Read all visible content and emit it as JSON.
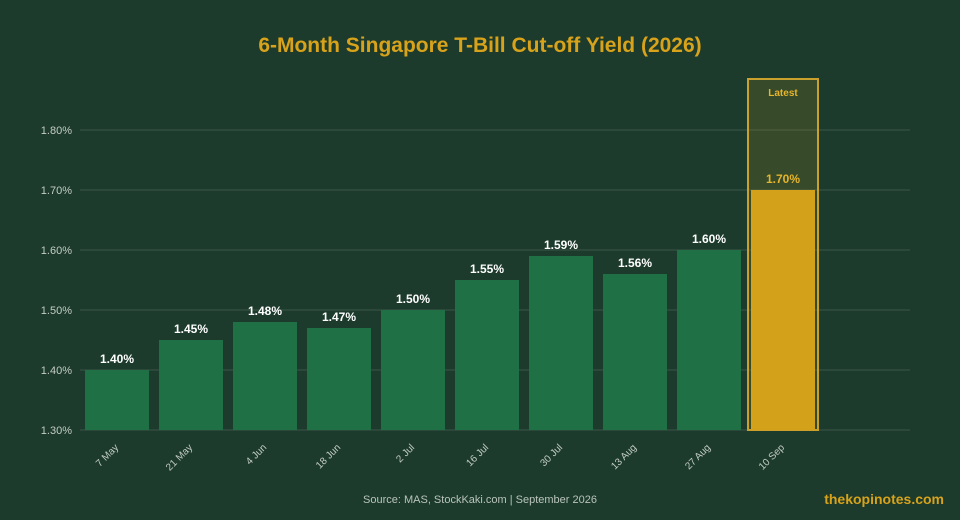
{
  "chart_data": {
    "type": "bar",
    "title": "6-Month Singapore T-Bill Cut-off Yield (2026)",
    "categories": [
      "7 May",
      "21 May",
      "4 Jun",
      "18 Jun",
      "2 Jul",
      "16 Jul",
      "30 Jul",
      "13 Aug",
      "27 Aug",
      "10 Sep"
    ],
    "values": [
      1.4,
      1.45,
      1.48,
      1.47,
      1.5,
      1.55,
      1.59,
      1.56,
      1.6,
      1.7
    ],
    "value_labels": [
      "1.40%",
      "1.45%",
      "1.48%",
      "1.47%",
      "1.50%",
      "1.55%",
      "1.59%",
      "1.56%",
      "1.60%",
      "1.70%"
    ],
    "ylim": [
      1.3,
      1.85
    ],
    "yticks": [
      1.3,
      1.4,
      1.5,
      1.6,
      1.7,
      1.8
    ],
    "ytick_labels": [
      "1.30%",
      "1.40%",
      "1.50%",
      "1.60%",
      "1.70%",
      "1.80%"
    ],
    "xlabel": "",
    "ylabel": "",
    "grid": true,
    "highlight": {
      "index": 9,
      "label": "Latest"
    },
    "colors": {
      "bar": "#1f7145",
      "highlight_bar": "#d4a21a",
      "highlight_box": "#c9a12c",
      "grid": "#3a5647",
      "axis_text": "#c4ccc6",
      "value_label": "#ffffff",
      "highlight_text": "#e6b52a"
    }
  },
  "footer": {
    "source": "Source: MAS, StockKaki.com | September 2026",
    "brand": "thekopinotes.com"
  }
}
